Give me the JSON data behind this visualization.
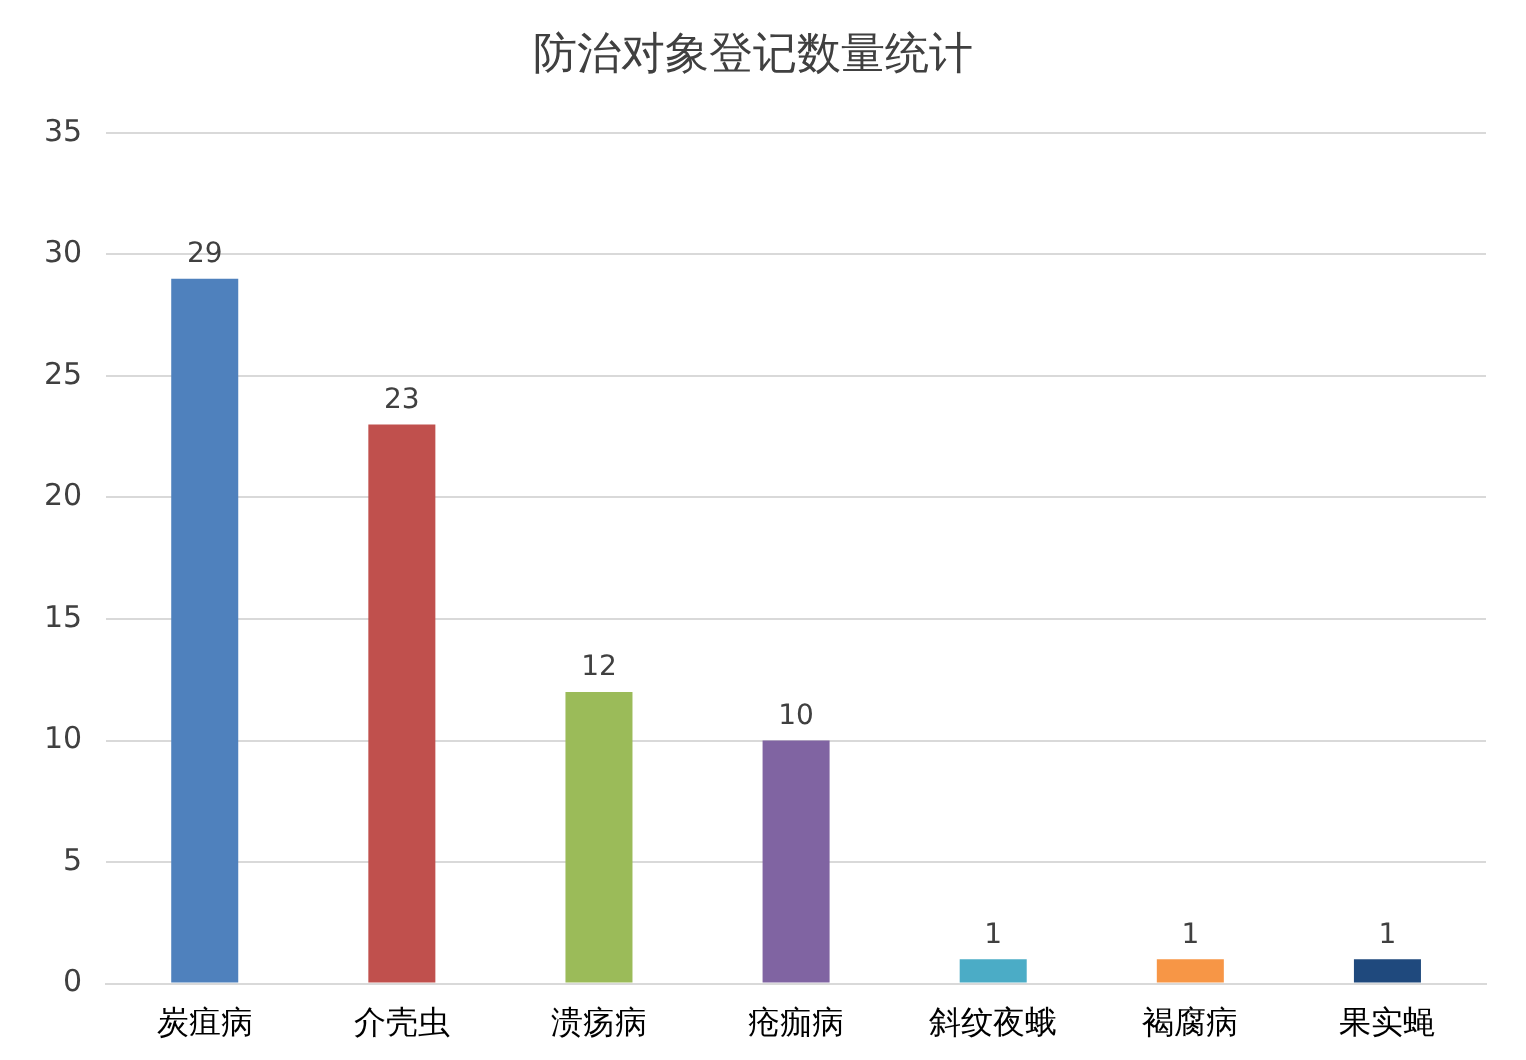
{
  "chart_data": {
    "type": "bar",
    "title": "防治对象登记数量统计",
    "categories": [
      "炭疽病",
      "介壳虫",
      "溃疡病",
      "疮痂病",
      "斜纹夜蛾",
      "褐腐病",
      "果实蝇"
    ],
    "values": [
      29,
      23,
      12,
      10,
      1,
      1,
      1
    ],
    "colors": [
      "#4f81bd",
      "#c0504d",
      "#9bbb59",
      "#8064a2",
      "#4bacc6",
      "#f79646",
      "#1f497d"
    ],
    "ylim": [
      0,
      35
    ],
    "yticks": [
      0,
      5,
      10,
      15,
      20,
      25,
      30,
      35
    ],
    "grid": "y",
    "legend": false,
    "data_labels": true
  }
}
